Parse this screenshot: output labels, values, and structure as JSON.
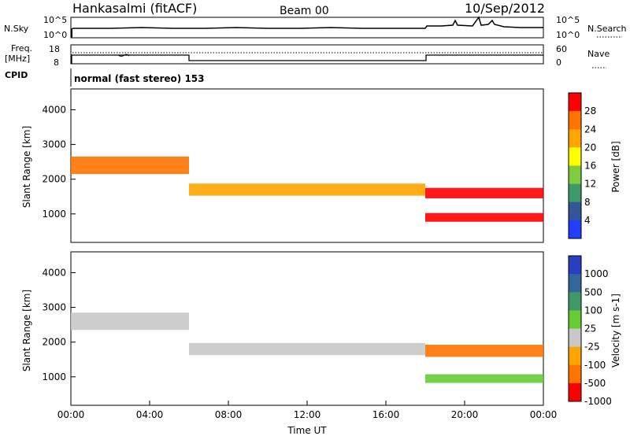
{
  "header": {
    "station": "Hankasalmi (fitACF)",
    "beam": "Beam 00",
    "date": "10/Sep/2012"
  },
  "top_panels": {
    "nsky_label": "N.Sky",
    "nsearch_label": "N.Search",
    "nsky_ticks": [
      "10^5",
      "10^0"
    ],
    "nsearch_ticks": [
      "10^5",
      "10^0"
    ],
    "freq_label": "Freq.",
    "freq_unit": "[MHz]",
    "freq_ticks": [
      "18",
      "8"
    ],
    "nave_label": "Nave",
    "nave_ticks": [
      "60",
      "0"
    ],
    "cpid_label": "CPID",
    "cpid_text": "normal (fast stereo) 153"
  },
  "chart_data": [
    {
      "type": "heatmap",
      "name": "power",
      "ylabel": "Slant Range [km]",
      "xlabel": "",
      "ylim": [
        180,
        4600
      ],
      "yticks": [
        "4000",
        "3000",
        "2000",
        "1000"
      ],
      "colorbar": {
        "label": "Power [dB]",
        "ticks": [
          "28",
          "24",
          "20",
          "16",
          "12",
          "8",
          "4"
        ],
        "colors": [
          "#ff0000",
          "#ff7300",
          "#ffa500",
          "#ffff00",
          "#7fcc3f",
          "#3d9967",
          "#335599",
          "#1f3fff"
        ]
      },
      "bands": [
        {
          "x_start": 0.0,
          "x_end": 6.0,
          "range_center": 2400,
          "thickness": 500,
          "color": "#ff7300"
        },
        {
          "x_start": 6.0,
          "x_end": 18.0,
          "range_center": 1700,
          "thickness": 350,
          "color": "#ffa500"
        },
        {
          "x_start": 18.0,
          "x_end": 24.0,
          "range_center": 1600,
          "thickness": 300,
          "color": "#ff0000"
        },
        {
          "x_start": 18.0,
          "x_end": 24.0,
          "range_center": 900,
          "thickness": 250,
          "color": "#ff0000"
        }
      ]
    },
    {
      "type": "heatmap",
      "name": "velocity",
      "ylabel": "Slant Range [km]",
      "xlabel": "Time UT",
      "ylim": [
        180,
        4600
      ],
      "yticks": [
        "4000",
        "3000",
        "2000",
        "1000"
      ],
      "xticks": [
        "00:00",
        "04:00",
        "08:00",
        "12:00",
        "16:00",
        "20:00",
        "00:00"
      ],
      "xlim": [
        0,
        24
      ],
      "colorbar": {
        "label": "Velocity [m s-1]",
        "ticks": [
          "1000",
          "500",
          "100",
          "25",
          "-25",
          "-100",
          "-500",
          "-1000"
        ],
        "colors": [
          "#2a3fbf",
          "#33669a",
          "#3d9967",
          "#66cc33",
          "#c8c8c8",
          "#ffa500",
          "#ff7300",
          "#ff0000"
        ]
      },
      "bands": [
        {
          "x_start": 0.0,
          "x_end": 6.0,
          "range_center": 2600,
          "thickness": 500,
          "color": "#c8c8c8"
        },
        {
          "x_start": 6.0,
          "x_end": 18.0,
          "range_center": 1800,
          "thickness": 350,
          "color": "#c8c8c8"
        },
        {
          "x_start": 18.0,
          "x_end": 24.0,
          "range_center": 1750,
          "thickness": 350,
          "color": "#ff7300"
        },
        {
          "x_start": 18.0,
          "x_end": 24.0,
          "range_center": 950,
          "thickness": 250,
          "color": "#66cc33"
        }
      ]
    }
  ]
}
